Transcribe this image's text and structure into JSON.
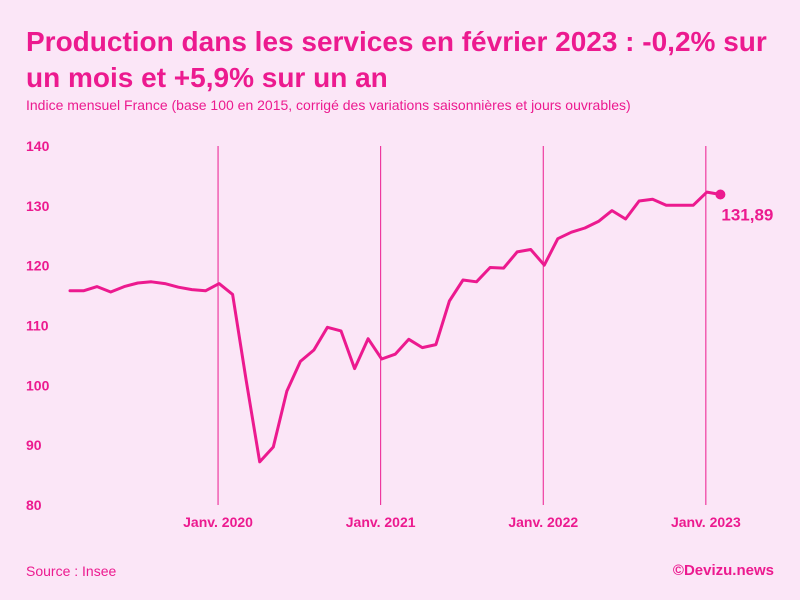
{
  "chart_data": {
    "type": "line",
    "title": "Production dans les services en février 2023 : -0,2% sur un mois et +5,9% sur un an",
    "subtitle": "Indice mensuel France (base 100 en 2015, corrigé des variations saisonnières et jours ouvrables)",
    "ylim": [
      80,
      140
    ],
    "yticks": [
      "140",
      "130",
      "120",
      "110",
      "100",
      "90",
      "80"
    ],
    "ytick_values": [
      140,
      130,
      120,
      110,
      100,
      90,
      80
    ],
    "xlabels": [
      "Janv. 2020",
      "Janv. 2021",
      "Janv. 2022",
      "Janv. 2023"
    ],
    "xlabel_indices": [
      11,
      23,
      35,
      47
    ],
    "series": [
      {
        "name": "Production dans les services",
        "values": [
          115.8,
          115.8,
          116.5,
          115.6,
          116.5,
          117.1,
          117.3,
          117.0,
          116.4,
          116.0,
          115.8,
          117.0,
          115.2,
          100.8,
          87.2,
          89.7,
          99.0,
          104.0,
          105.9,
          109.7,
          109.1,
          102.8,
          107.8,
          104.4,
          105.2,
          107.7,
          106.3,
          106.8,
          114.1,
          117.6,
          117.3,
          119.7,
          119.6,
          122.3,
          122.7,
          120.1,
          124.5,
          125.6,
          126.3,
          127.4,
          129.2,
          127.8,
          130.8,
          131.1,
          130.1,
          130.1,
          130.1,
          132.3,
          131.89
        ]
      }
    ],
    "last_value_label": "131,89",
    "color": "#ec1a8f"
  },
  "footer": {
    "source": "Source : Insee",
    "brand": "©Devizu.news"
  }
}
